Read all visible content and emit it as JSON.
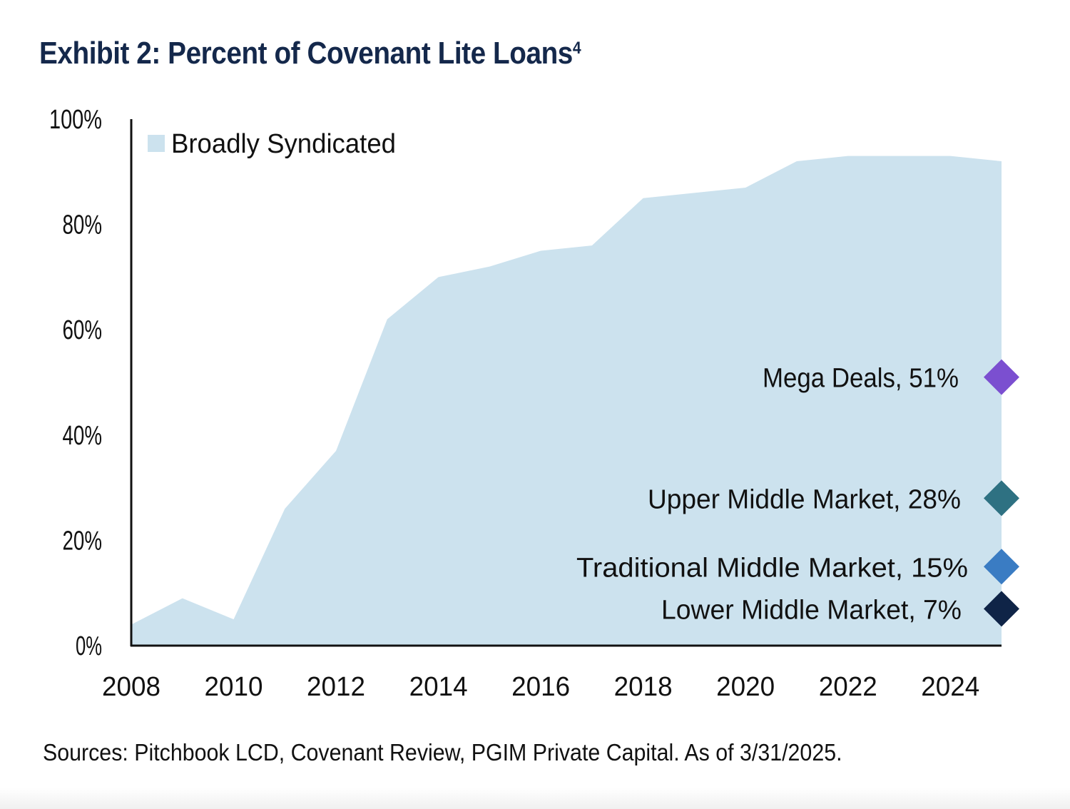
{
  "title": "Exhibit 2: Percent of Covenant Lite Loans",
  "title_superscript": "4",
  "source_note": "Sources: Pitchbook LCD, Covenant Review, PGIM Private Capital. As of 3/31/2025.",
  "colors": {
    "title": "#14284b",
    "area": "#cce2ee",
    "axis": "#111111",
    "mega_deals": "#7b4fd0",
    "upper_middle_market": "#2e7182",
    "traditional_middle_market": "#3a7cc3",
    "lower_middle_market": "#0f2447"
  },
  "chart_data": {
    "type": "area",
    "title": "Exhibit 2: Percent of Covenant Lite Loans",
    "xlabel": "",
    "ylabel": "",
    "xlim": [
      2008,
      2025
    ],
    "ylim": [
      0,
      100
    ],
    "x_ticks": [
      2008,
      2010,
      2012,
      2014,
      2016,
      2018,
      2020,
      2022,
      2024
    ],
    "x_tick_labels": [
      "2008",
      "2010",
      "2012",
      "2014",
      "2016",
      "2018",
      "2020",
      "2022",
      "2024"
    ],
    "y_ticks": [
      0,
      20,
      40,
      60,
      80,
      100
    ],
    "y_tick_labels": [
      "0%",
      "20%",
      "40%",
      "60%",
      "80%",
      "100%"
    ],
    "grid": false,
    "legend": {
      "position": "top-left",
      "entries": [
        "Broadly Syndicated"
      ]
    },
    "series": [
      {
        "name": "Broadly Syndicated",
        "x": [
          2008,
          2009,
          2010,
          2011,
          2012,
          2013,
          2014,
          2015,
          2016,
          2017,
          2018,
          2019,
          2020,
          2021,
          2022,
          2023,
          2024,
          2025
        ],
        "values": [
          4,
          9,
          5,
          26,
          37,
          62,
          70,
          72,
          75,
          76,
          85,
          86,
          87,
          92,
          93,
          93,
          93,
          92
        ]
      }
    ],
    "markers": [
      {
        "label": "Mega Deals, 51%",
        "x": 2025,
        "value": 51,
        "color": "#7b4fd0"
      },
      {
        "label": "Upper Middle Market, 28%",
        "x": 2025,
        "value": 28,
        "color": "#2e7182"
      },
      {
        "label": "Traditional Middle Market, 15%",
        "x": 2025,
        "value": 15,
        "color": "#3a7cc3"
      },
      {
        "label": "Lower Middle Market, 7%",
        "x": 2025,
        "value": 7,
        "color": "#0f2447"
      }
    ]
  }
}
